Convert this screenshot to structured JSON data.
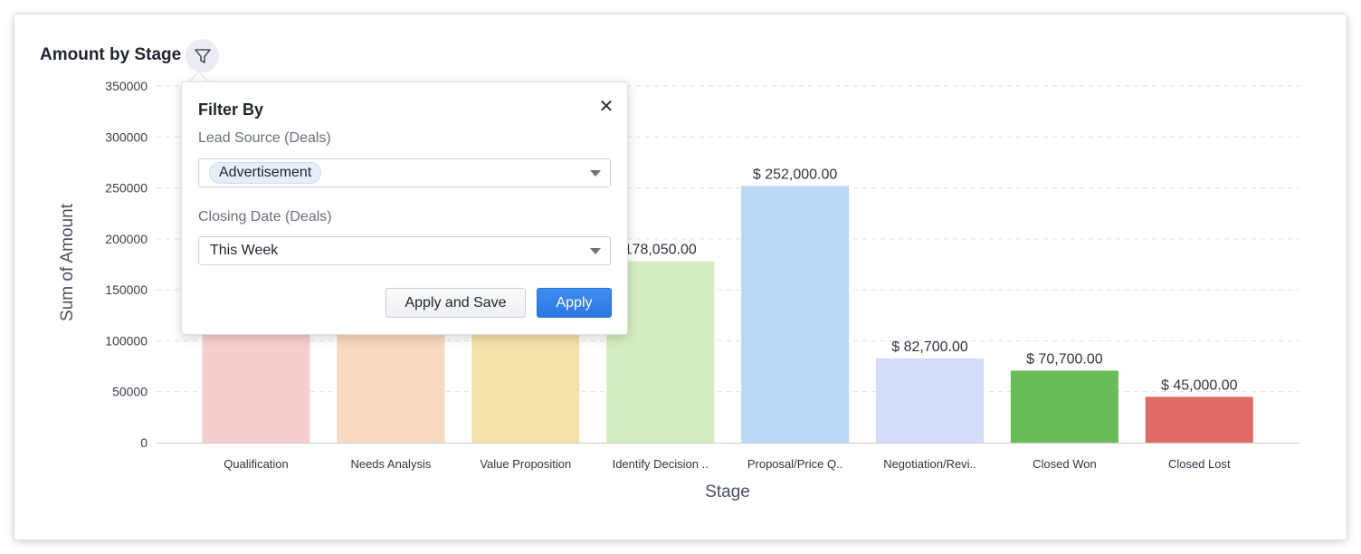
{
  "header": {
    "title": "Amount by Stage",
    "filter_icon": "funnel-icon"
  },
  "chart_data": {
    "type": "bar",
    "title": "Amount by Stage",
    "xlabel": "Stage",
    "ylabel": "Sum of Amount",
    "ylim": [
      0,
      350000
    ],
    "yticks": [
      "0",
      "50000",
      "100000",
      "150000",
      "200000",
      "250000",
      "300000",
      "350000"
    ],
    "grid": true,
    "categories": [
      "Qualification",
      "Needs Analysis",
      "Value Proposition",
      "Identify Decision ..",
      "Proposal/Price Q..",
      "Negotiation/Revi..",
      "Closed Won",
      "Closed Lost"
    ],
    "values": [
      null,
      null,
      null,
      178050,
      252000,
      82700,
      70700,
      45000
    ],
    "data_labels": [
      "",
      "",
      "",
      "178,050.00",
      "$ 252,000.00",
      "$ 82,700.00",
      "$ 70,700.00",
      "$ 45,000.00"
    ],
    "colors": [
      "#f8cdcd",
      "#f8d9c1",
      "#f5e2a8",
      "#d3edc0",
      "#bad8f6",
      "#d3dcf8",
      "#68bd56",
      "#e06a64"
    ]
  },
  "filter_popup": {
    "title": "Filter By",
    "close_icon": "close-icon",
    "fields": [
      {
        "label": "Lead Source (Deals)",
        "value": "Advertisement"
      },
      {
        "label": "Closing Date (Deals)",
        "value": "This Week"
      }
    ],
    "apply_save_label": "Apply and Save",
    "apply_label": "Apply",
    "primary_color": "#2f7ae5"
  }
}
